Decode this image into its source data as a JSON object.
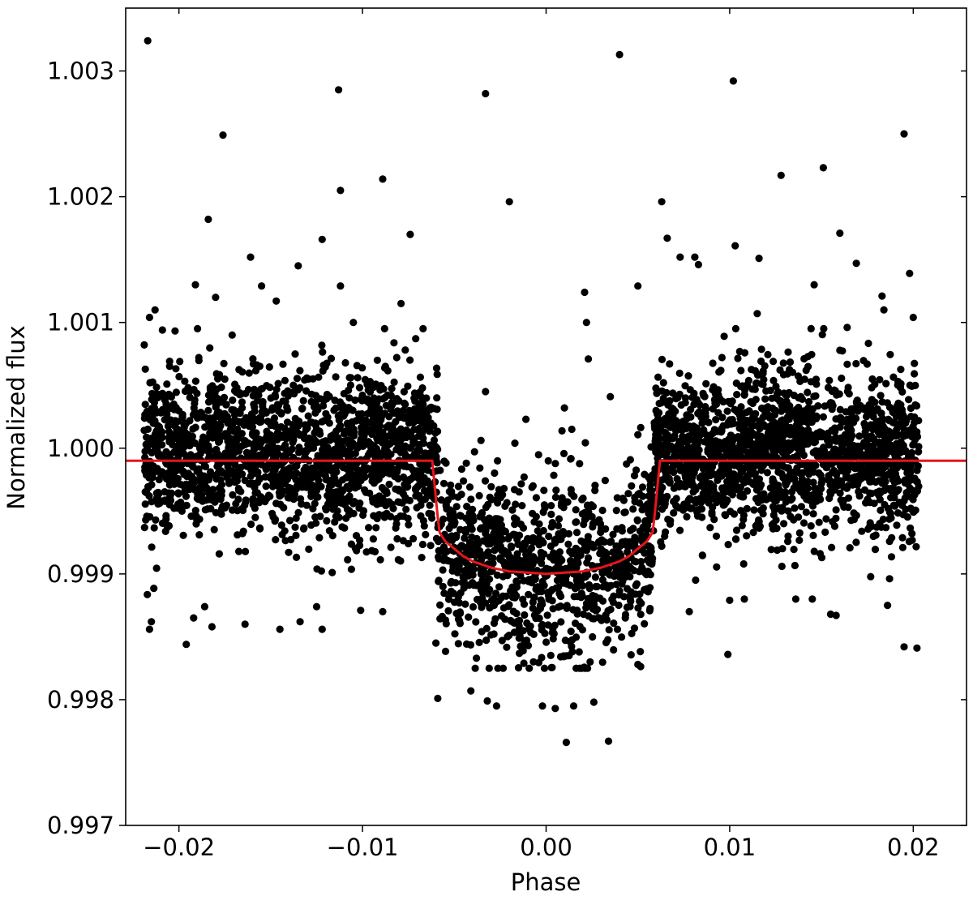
{
  "chart_data": {
    "type": "scatter",
    "title": "",
    "xlabel": "Phase",
    "ylabel": "Normalized flux",
    "xlim": [
      -0.0229,
      0.0229
    ],
    "ylim": [
      0.997,
      1.0035
    ],
    "xticks": [
      -0.02,
      -0.01,
      0.0,
      0.01,
      0.02
    ],
    "xtick_labels": [
      "−0.02",
      "−0.01",
      "0.00",
      "0.01",
      "0.02"
    ],
    "yticks": [
      0.997,
      0.998,
      0.999,
      1.0,
      1.001,
      1.002,
      1.003
    ],
    "ytick_labels": [
      "0.997",
      "0.998",
      "0.999",
      "1.000",
      "1.001",
      "1.002",
      "1.003"
    ],
    "grid": false,
    "legend": "none",
    "colors": {
      "points": "#000000",
      "model": "#e8141b"
    },
    "series": [
      {
        "kind": "scatter",
        "marker": "filled-circle",
        "x": [
          -0.0217,
          0.0195,
          -0.0176,
          -0.0113,
          0.004,
          -0.0033,
          0.0102,
          -0.0112,
          -0.0089,
          -0.002,
          0.0128,
          0.0151,
          0.0066,
          -0.0184,
          -0.0122,
          -0.0074,
          0.016,
          -0.0161,
          0.0103,
          0.0081,
          -0.0135,
          0.0198,
          -0.0191,
          -0.0112,
          0.005,
          0.0021,
          -0.0155,
          -0.0079,
          0.0073,
          0.0083,
          0.0116,
          -0.0147,
          0.0169,
          -0.0213,
          0.0097,
          0.0022,
          -0.0209,
          -0.018,
          0.0183,
          0.0146,
          -0.0215,
          -0.0196,
          0.0018,
          0.0024,
          -0.0089,
          0.0202,
          0.0099,
          -0.0122,
          0.0158,
          0.0136,
          0.0078,
          0.0108,
          -0.0164,
          0.0186,
          -0.0186,
          0.005,
          -0.0101,
          -0.0134,
          0.0034,
          -0.0059,
          0.0011,
          0.0005,
          -0.0002,
          0.0015,
          -0.0027,
          -0.0032,
          -0.0041,
          0.0026,
          -0.0216,
          -0.0145,
          -0.0192,
          -0.0182,
          -0.0125,
          0.0155,
          0.0195,
          0.01,
          -0.006,
          0.0145,
          -0.0216,
          0.0063,
          -0.0017,
          0.001,
          -0.0011,
          0.0023,
          -0.0033,
          0.0014,
          0.0035,
          -0.0088,
          -0.0105,
          0.02,
          0.0184,
          0.0115,
          -0.0171,
          0.0164,
          -0.0067
        ],
        "y": [
          1.00324,
          1.0025,
          1.00249,
          1.00285,
          1.00313,
          1.00282,
          1.00292,
          1.00205,
          1.00214,
          1.00196,
          1.00217,
          1.00223,
          1.00167,
          1.00182,
          1.00166,
          1.0017,
          1.00171,
          1.00152,
          1.00161,
          1.00152,
          1.00145,
          1.00139,
          1.0013,
          1.00129,
          1.00129,
          1.00124,
          1.00129,
          1.00115,
          1.00152,
          1.00146,
          1.00151,
          1.00117,
          1.00147,
          1.0011,
          1.00089,
          1.001,
          1.00094,
          1.0012,
          1.00121,
          1.0013,
          0.99862,
          0.99844,
          0.99838,
          0.9983,
          0.9987,
          0.99841,
          0.99836,
          0.99856,
          0.99867,
          0.9988,
          0.9987,
          0.9988,
          0.9986,
          0.99875,
          0.99874,
          0.99828,
          0.99871,
          0.99862,
          0.99767,
          0.99801,
          0.99766,
          0.99793,
          0.99795,
          0.99795,
          0.99795,
          0.99799,
          0.99807,
          0.99798,
          0.99856,
          0.99856,
          0.99865,
          0.99858,
          0.99874,
          0.99868,
          0.99842,
          0.99879,
          0.99845,
          0.9988,
          1.00104,
          1.00196,
          1.00004,
          1.00032,
          1.00023,
          1.00071,
          1.00045,
          1.00015,
          1.00041,
          1.00095,
          1.001,
          1.00104,
          1.0011,
          1.00107,
          1.0009,
          1.00096,
          1.00095
        ]
      },
      {
        "kind": "model-line",
        "name": "",
        "x": [
          -0.0229,
          -0.0062,
          -0.006,
          -0.0059,
          -0.0058,
          -0.0055,
          -0.005,
          -0.0045,
          -0.004,
          -0.003,
          -0.002,
          -0.001,
          0.0,
          0.001,
          0.002,
          0.003,
          0.004,
          0.0045,
          0.005,
          0.0055,
          0.0058,
          0.0059,
          0.006,
          0.0062,
          0.0229
        ],
        "y": [
          0.9999,
          0.9999,
          0.9996,
          0.99945,
          0.99933,
          0.99926,
          0.9992,
          0.99914,
          0.9991,
          0.99905,
          0.99902,
          0.99901,
          0.999,
          0.99901,
          0.99902,
          0.99905,
          0.9991,
          0.99914,
          0.9992,
          0.99926,
          0.99933,
          0.99945,
          0.9996,
          0.9999,
          0.9999
        ]
      }
    ],
    "noise_cloud": {
      "description_free_note": "",
      "segments": [
        {
          "x_range": [
            -0.0219,
            -0.0059
          ],
          "center": 0.99995,
          "sigma": 0.00032,
          "count": 1750
        },
        {
          "x_range": [
            -0.0059,
            0.0059
          ],
          "center": "model",
          "sigma": 0.00036,
          "count": 1000
        },
        {
          "x_range": [
            0.0059,
            0.0203
          ],
          "center": 0.99995,
          "sigma": 0.00032,
          "count": 1750
        }
      ]
    }
  }
}
